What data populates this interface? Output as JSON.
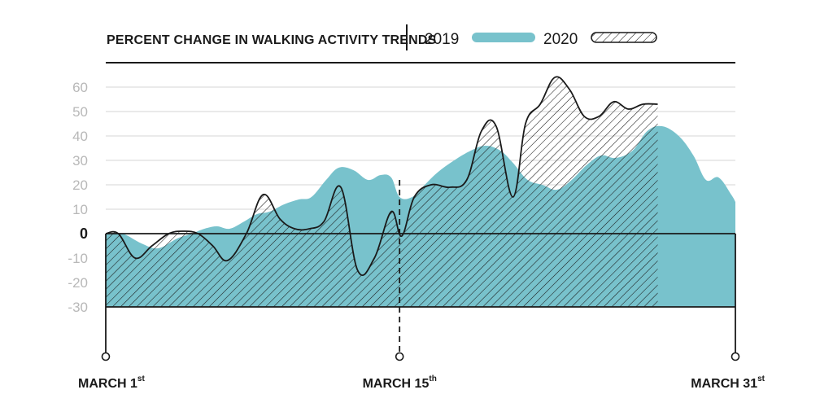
{
  "chart_data": {
    "type": "area",
    "title": "PERCENT CHANGE IN WALKING ACTIVITY TRENDS",
    "ylim": [
      -30,
      65
    ],
    "yticks": [
      {
        "value": 60,
        "label": "60"
      },
      {
        "value": 50,
        "label": "50"
      },
      {
        "value": 40,
        "label": "40"
      },
      {
        "value": 30,
        "label": "30"
      },
      {
        "value": 20,
        "label": "20"
      },
      {
        "value": 10,
        "label": "10"
      },
      {
        "value": 0,
        "label": "0"
      },
      {
        "value": -10,
        "label": "-10"
      },
      {
        "value": -20,
        "label": "-20"
      },
      {
        "value": -30,
        "label": "-30"
      }
    ],
    "grid": true,
    "legend": {
      "position": "top"
    },
    "x_labels": [
      {
        "day": 1,
        "text": "MARCH 1",
        "sup": "st"
      },
      {
        "day": 15,
        "text": "MARCH 15",
        "sup": "th"
      },
      {
        "day": 31,
        "text": "MARCH 31",
        "sup": "st"
      }
    ],
    "marker_day": 15,
    "series": [
      {
        "name": "2019",
        "color": "#78c2cc",
        "style": "solid",
        "points": [
          [
            1,
            0
          ],
          [
            1.8,
            0
          ],
          [
            2.7,
            -4
          ],
          [
            3.5,
            -6
          ],
          [
            4.4,
            -2
          ],
          [
            5.1,
            0
          ],
          [
            5.7,
            2
          ],
          [
            6.3,
            3
          ],
          [
            6.9,
            2
          ],
          [
            7.6,
            5
          ],
          [
            8.2,
            8
          ],
          [
            8.8,
            9
          ],
          [
            9.5,
            12
          ],
          [
            10.2,
            14
          ],
          [
            10.8,
            15
          ],
          [
            11.5,
            22
          ],
          [
            12.1,
            27
          ],
          [
            12.8,
            26
          ],
          [
            13.5,
            22
          ],
          [
            14.1,
            24
          ],
          [
            14.6,
            23
          ],
          [
            15,
            15
          ],
          [
            15.6,
            15
          ],
          [
            16.2,
            20
          ],
          [
            16.8,
            25
          ],
          [
            17.6,
            30
          ],
          [
            18.4,
            34
          ],
          [
            19.1,
            36
          ],
          [
            19.8,
            34
          ],
          [
            20.4,
            29
          ],
          [
            21.1,
            22
          ],
          [
            21.8,
            20
          ],
          [
            22.5,
            18
          ],
          [
            23.2,
            22
          ],
          [
            23.9,
            28
          ],
          [
            24.6,
            32
          ],
          [
            25.3,
            31
          ],
          [
            26.1,
            34
          ],
          [
            26.8,
            42
          ],
          [
            27.5,
            44
          ],
          [
            28.3,
            40
          ],
          [
            29,
            32
          ],
          [
            29.6,
            22
          ],
          [
            30.2,
            23
          ],
          [
            30.8,
            16
          ],
          [
            31,
            13
          ]
        ]
      },
      {
        "name": "2020",
        "color": "#1a1a1a",
        "style": "hatched",
        "points": [
          [
            1,
            0
          ],
          [
            1.6,
            0
          ],
          [
            2.4,
            -10
          ],
          [
            3.2,
            -5
          ],
          [
            4,
            0
          ],
          [
            4.7,
            1
          ],
          [
            5.4,
            0
          ],
          [
            6.1,
            -5
          ],
          [
            6.8,
            -11
          ],
          [
            7.7,
            0
          ],
          [
            8.5,
            16
          ],
          [
            9.3,
            6
          ],
          [
            10,
            2
          ],
          [
            10.7,
            2
          ],
          [
            11.4,
            5
          ],
          [
            12.2,
            19
          ],
          [
            13,
            -15
          ],
          [
            13.8,
            -10
          ],
          [
            14.6,
            9
          ],
          [
            15.1,
            -1
          ],
          [
            15.7,
            15
          ],
          [
            16.5,
            20
          ],
          [
            17.4,
            19
          ],
          [
            18.2,
            22
          ],
          [
            18.9,
            42
          ],
          [
            19.6,
            44
          ],
          [
            20.4,
            15
          ],
          [
            21,
            45
          ],
          [
            21.7,
            53
          ],
          [
            22.4,
            64
          ],
          [
            23.1,
            59
          ],
          [
            23.8,
            48
          ],
          [
            24.5,
            48
          ],
          [
            25.2,
            54
          ],
          [
            25.9,
            51
          ],
          [
            26.6,
            53
          ],
          [
            27.3,
            53
          ]
        ]
      }
    ]
  }
}
